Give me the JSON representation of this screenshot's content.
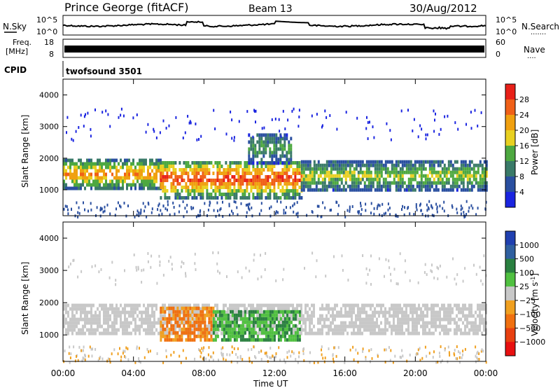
{
  "header": {
    "station": "Prince George (fitACF)",
    "beam": "Beam 13",
    "date": "30/Aug/2012"
  },
  "strip_labels": {
    "nsky": "N.Sky",
    "nsearch": "N.Search",
    "freq_line1": "Freq.",
    "freq_line2": "[MHz]",
    "nave": "Nave",
    "cpid": "CPID",
    "cpid_value": "twofsound 3501",
    "noise_left_ticks": [
      "10^5",
      "10^0"
    ],
    "noise_right_ticks": [
      "10^5",
      "10^0"
    ],
    "freq_left_ticks": [
      "18",
      "8"
    ],
    "freq_right_ticks": [
      "60",
      "0"
    ]
  },
  "x_axis": {
    "label": "Time UT",
    "ticks": [
      "00:00",
      "04:00",
      "08:00",
      "12:00",
      "16:00",
      "20:00",
      "00:00"
    ]
  },
  "y_axis": {
    "label": "Slant Range [km]",
    "ticks": [
      "1000",
      "2000",
      "3000",
      "4000"
    ]
  },
  "power_colorbar": {
    "label": "Power [dB]",
    "ticks": [
      "4",
      "8",
      "12",
      "16",
      "20",
      "24",
      "28"
    ],
    "colors": [
      "#1a24e0",
      "#2a4fa0",
      "#3a7a68",
      "#4da840",
      "#e8d020",
      "#f0a010",
      "#f06018",
      "#e82018"
    ]
  },
  "velocity_colorbar": {
    "label": "Velocity [m s",
    "label_sup": "-1",
    "label_end": "]",
    "ticks": [
      "1000",
      "500",
      "100",
      "25",
      "−25",
      "−100",
      "−500",
      "−1000"
    ],
    "colors": [
      "#2040b0",
      "#3060a0",
      "#2a8040",
      "#50c040",
      "#c8c8c8",
      "#f0a020",
      "#f07010",
      "#e84010",
      "#e81010"
    ]
  },
  "chart_data": [
    {
      "type": "heatmap",
      "panel": "power",
      "xlabel": "Time UT",
      "ylabel": "Slant Range [km]",
      "xlim": [
        0,
        24
      ],
      "ylim": [
        180,
        4500
      ],
      "colorbar_label": "Power [dB]",
      "colorbar_range": [
        0,
        30
      ],
      "bands": [
        {
          "t0": 0,
          "t1": 5.5,
          "r0": 1100,
          "r1": 2000,
          "value": 24
        },
        {
          "t0": 5.5,
          "t1": 13.5,
          "r0": 800,
          "r1": 2000,
          "value": 28
        },
        {
          "t0": 13.5,
          "t1": 24,
          "r0": 1050,
          "r1": 1950,
          "value": 16
        },
        {
          "t0": 10.5,
          "t1": 13,
          "r0": 1900,
          "r1": 2800,
          "value": 12
        }
      ]
    },
    {
      "type": "heatmap",
      "panel": "velocity",
      "xlabel": "Time UT",
      "ylabel": "Slant Range [km]",
      "xlim": [
        0,
        24
      ],
      "ylim": [
        180,
        4500
      ],
      "colorbar_label": "Velocity [m s-1]",
      "colorbar_range": [
        -1000,
        1000
      ],
      "bands": [
        {
          "t0": 0,
          "t1": 24,
          "r0": 1100,
          "r1": 2000,
          "value": 0
        },
        {
          "t0": 5.5,
          "t1": 8.5,
          "r0": 900,
          "r1": 1900,
          "value": -300
        },
        {
          "t0": 8.5,
          "t1": 13.5,
          "r0": 900,
          "r1": 1800,
          "value": 60
        }
      ]
    }
  ]
}
